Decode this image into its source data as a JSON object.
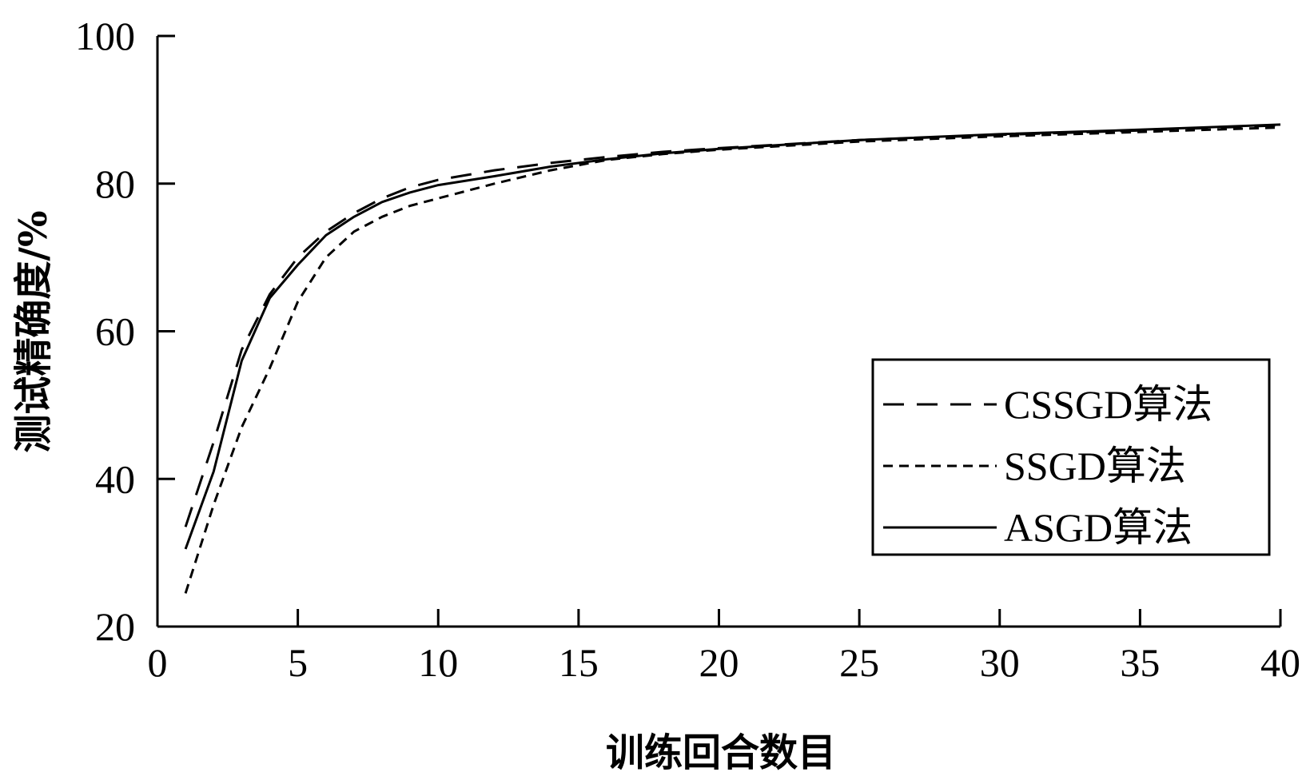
{
  "chart_data": {
    "type": "line",
    "title": "",
    "xlabel": "训练回合数目",
    "ylabel": "测试精确度/%",
    "xlim": [
      0,
      40
    ],
    "ylim": [
      20,
      100
    ],
    "xticks": [
      0,
      5,
      10,
      15,
      20,
      25,
      30,
      35,
      40
    ],
    "yticks": [
      20,
      40,
      60,
      80,
      100
    ],
    "xtick_labels": [
      "0",
      "5",
      "10",
      "15",
      "20",
      "25",
      "30",
      "35",
      "40"
    ],
    "ytick_labels": [
      "20",
      "40",
      "60",
      "80",
      "100"
    ],
    "grid": false,
    "legend_position": "bottom-right",
    "x": [
      1,
      2,
      3,
      4,
      5,
      6,
      7,
      8,
      9,
      10,
      12,
      14,
      16,
      18,
      20,
      25,
      30,
      35,
      40
    ],
    "series": [
      {
        "name": "CSSGD算法",
        "style": "dashed",
        "values": [
          33.5,
          45.0,
          57.5,
          65.0,
          70.0,
          73.5,
          76.0,
          78.0,
          79.5,
          80.5,
          81.8,
          82.8,
          83.6,
          84.3,
          84.8,
          85.9,
          86.6,
          87.2,
          87.9
        ]
      },
      {
        "name": "SSGD算法",
        "style": "dotted",
        "values": [
          24.5,
          36.5,
          47.0,
          55.0,
          64.0,
          70.0,
          73.5,
          75.5,
          77.0,
          78.0,
          80.0,
          81.8,
          83.2,
          84.0,
          84.6,
          85.7,
          86.4,
          87.0,
          87.6
        ]
      },
      {
        "name": "ASGD算法",
        "style": "solid",
        "values": [
          30.5,
          41.0,
          56.0,
          64.5,
          69.0,
          73.0,
          75.5,
          77.5,
          78.8,
          79.8,
          81.0,
          82.3,
          83.3,
          84.1,
          84.7,
          85.9,
          86.7,
          87.3,
          88.0
        ]
      }
    ]
  }
}
